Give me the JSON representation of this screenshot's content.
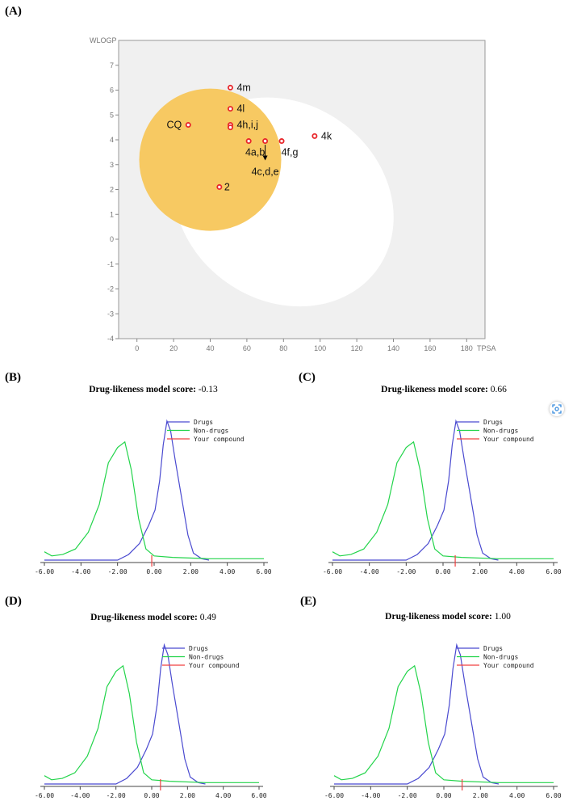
{
  "panel_labels": {
    "a": "(A)",
    "b": "(B)",
    "c": "(C)",
    "d": "(D)",
    "e": "(E)"
  },
  "chart_data": [
    {
      "type": "scatter",
      "panel": "A",
      "xlabel": "TPSA",
      "ylabel": "WLOGP",
      "xlim": [
        -10,
        190
      ],
      "ylim": [
        -4,
        8
      ],
      "x_ticks": [
        "0",
        "20",
        "40",
        "60",
        "80",
        "100",
        "120",
        "140",
        "160",
        "180"
      ],
      "y_ticks": [
        "-4",
        "-3",
        "-2",
        "-1",
        "0",
        "1",
        "2",
        "3",
        "4",
        "5",
        "6",
        "7"
      ],
      "colors": {
        "plot_bg": "#f0f0f0",
        "hia_ellipse": "#ffffff",
        "bbb_yolk": "#f7c65a",
        "point": "#e8262a"
      },
      "points": [
        {
          "label": "4m",
          "x": 51,
          "y": 6.1
        },
        {
          "label": "4l",
          "x": 51,
          "y": 5.25
        },
        {
          "label": "4h,i,j",
          "x": 51,
          "y": 4.6
        },
        {
          "label": "",
          "x": 51,
          "y": 4.5
        },
        {
          "label": "CQ",
          "x": 28,
          "y": 4.6
        },
        {
          "label": "4a,b",
          "x": 61,
          "y": 3.95
        },
        {
          "label": "4c,d,e",
          "x": 70,
          "y": 3.95
        },
        {
          "label": "4f,g",
          "x": 79,
          "y": 3.95
        },
        {
          "label": "4k",
          "x": 97,
          "y": 4.15
        },
        {
          "label": "2",
          "x": 45,
          "y": 2.1
        }
      ]
    },
    {
      "type": "line",
      "panel": "B",
      "title_bold": "Drug-likeness model score:",
      "score": "-0.13",
      "score_value": -0.13,
      "x_ticks": [
        "-6.00",
        "-4.00",
        "-2.00",
        "0.00",
        "2.00",
        "4.00",
        "6.00"
      ],
      "xlim": [
        -6,
        6
      ],
      "series": [
        {
          "name": "Drugs",
          "color": "#4a4ad0"
        },
        {
          "name": "Non-drugs",
          "color": "#22d44a"
        },
        {
          "name": "Your compound",
          "color": "#f04040"
        }
      ]
    },
    {
      "type": "line",
      "panel": "C",
      "title_bold": "Drug-likeness model score:",
      "score": "0.66",
      "score_value": 0.66,
      "x_ticks": [
        "-6.00",
        "-4.00",
        "-2.00",
        "0.00",
        "2.00",
        "4.00",
        "6.00"
      ],
      "xlim": [
        -6,
        6
      ],
      "series": [
        {
          "name": "Drugs",
          "color": "#4a4ad0"
        },
        {
          "name": "Non-drugs",
          "color": "#22d44a"
        },
        {
          "name": "Your compound",
          "color": "#f04040"
        }
      ]
    },
    {
      "type": "line",
      "panel": "D",
      "title_bold": "Drug-likeness model score:",
      "score": "0.49",
      "score_value": 0.49,
      "x_ticks": [
        "-6.00",
        "-4.00",
        "-2.00",
        "0.00",
        "2.00",
        "4.00",
        "6.00"
      ],
      "xlim": [
        -6,
        6
      ],
      "series": [
        {
          "name": "Drugs",
          "color": "#4a4ad0"
        },
        {
          "name": "Non-drugs",
          "color": "#22d44a"
        },
        {
          "name": "Your compound",
          "color": "#f04040"
        }
      ]
    },
    {
      "type": "line",
      "panel": "E",
      "title_bold": "Drug-likeness model score:",
      "score": "1.00",
      "score_value": 1.0,
      "x_ticks": [
        "-6.00",
        "-4.00",
        "-2.00",
        "0.00",
        "2.00",
        "4.00",
        "6.00"
      ],
      "xlim": [
        -6,
        6
      ],
      "series": [
        {
          "name": "Drugs",
          "color": "#4a4ad0"
        },
        {
          "name": "Non-drugs",
          "color": "#22d44a"
        },
        {
          "name": "Your compound",
          "color": "#f04040"
        }
      ]
    }
  ],
  "distributions": {
    "drugs": [
      [
        -6,
        0.0
      ],
      [
        -2,
        0.0
      ],
      [
        -1.4,
        0.04
      ],
      [
        -0.8,
        0.12
      ],
      [
        -0.3,
        0.25
      ],
      [
        0.05,
        0.36
      ],
      [
        0.3,
        0.57
      ],
      [
        0.5,
        0.83
      ],
      [
        0.7,
        1.0
      ],
      [
        0.9,
        0.93
      ],
      [
        1.15,
        0.72
      ],
      [
        1.5,
        0.45
      ],
      [
        1.85,
        0.18
      ],
      [
        2.15,
        0.05
      ],
      [
        2.6,
        0.01
      ],
      [
        3,
        0.0
      ]
    ],
    "non_drugs": [
      [
        -6,
        0.06
      ],
      [
        -5.6,
        0.03
      ],
      [
        -5.0,
        0.04
      ],
      [
        -4.3,
        0.08
      ],
      [
        -3.6,
        0.2
      ],
      [
        -3.0,
        0.4
      ],
      [
        -2.5,
        0.7
      ],
      [
        -2.0,
        0.81
      ],
      [
        -1.6,
        0.85
      ],
      [
        -1.25,
        0.65
      ],
      [
        -0.85,
        0.3
      ],
      [
        -0.45,
        0.08
      ],
      [
        0,
        0.03
      ],
      [
        1,
        0.02
      ],
      [
        3,
        0.01
      ],
      [
        6,
        0.01
      ]
    ]
  }
}
